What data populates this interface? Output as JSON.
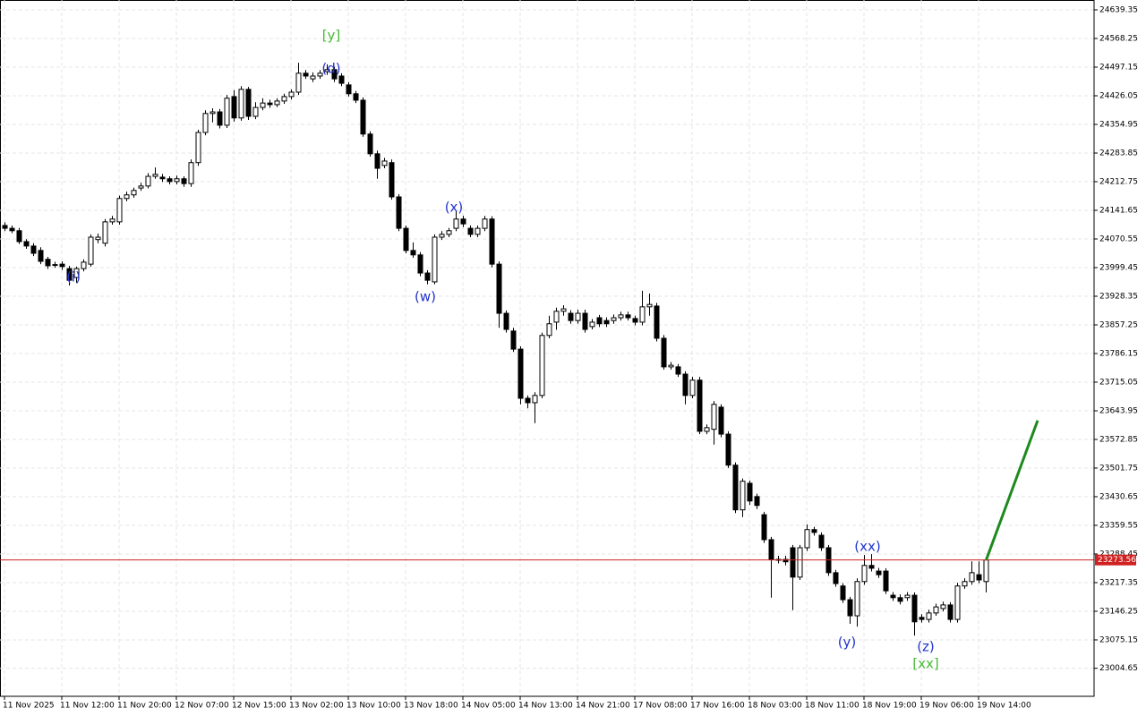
{
  "chart_data": {
    "type": "candlestick",
    "categories": [
      "11 Nov 2025",
      null,
      null,
      null,
      null,
      null,
      null,
      null,
      "11 Nov 12:00",
      null,
      null,
      null,
      null,
      null,
      null,
      null,
      "11 Nov 20:00",
      null,
      null,
      null,
      null,
      null,
      null,
      null,
      "12 Nov 07:00",
      null,
      null,
      null,
      null,
      null,
      null,
      null,
      "12 Nov 15:00",
      null,
      null,
      null,
      null,
      null,
      null,
      null,
      "13 Nov 02:00",
      null,
      null,
      null,
      null,
      null,
      null,
      null,
      "13 Nov 10:00",
      null,
      null,
      null,
      null,
      null,
      null,
      null,
      "13 Nov 18:00",
      null,
      null,
      null,
      null,
      null,
      null,
      null,
      "14 Nov 05:00",
      null,
      null,
      null,
      null,
      null,
      null,
      null,
      "14 Nov 13:00",
      null,
      null,
      null,
      null,
      null,
      null,
      null,
      "14 Nov 21:00",
      null,
      null,
      null,
      null,
      null,
      null,
      null,
      "17 Nov 08:00",
      null,
      null,
      null,
      null,
      null,
      null,
      null,
      "17 Nov 16:00",
      null,
      null,
      null,
      null,
      null,
      null,
      null,
      "18 Nov 03:00",
      null,
      null,
      null,
      null,
      null,
      null,
      null,
      "18 Nov 11:00",
      null,
      null,
      null,
      null,
      null,
      null,
      null,
      "18 Nov 19:00",
      null,
      null,
      null,
      null,
      null,
      null,
      null,
      "19 Nov 06:00",
      null,
      null,
      null,
      null,
      null,
      null,
      null,
      "19 Nov 14:00",
      null
    ],
    "open": [
      24104,
      24097,
      24091,
      24064,
      24053,
      24042,
      24020,
      24006,
      24008,
      23997,
      23975,
      23997,
      24008,
      24069,
      24060,
      24113,
      24113,
      24171,
      24180,
      24197,
      24202,
      24226,
      24224,
      24220,
      24213,
      24220,
      24208,
      24260,
      24335,
      24382,
      24386,
      24353,
      24424,
      24371,
      24442,
      24375,
      24397,
      24408,
      24404,
      24413,
      24424,
      24435,
      24482,
      24468,
      24475,
      24486,
      24491,
      24475,
      24453,
      24431,
      24415,
      24331,
      24282,
      24253,
      24260,
      24175,
      24097,
      24042,
      24031,
      23986,
      23964,
      24075,
      24082,
      24097,
      24120,
      24097,
      24082,
      24097,
      24120,
      24008,
      23886,
      23842,
      23797,
      23675,
      23664,
      23682,
      23831,
      23864,
      23891,
      23886,
      23868,
      23886,
      23853,
      23875,
      23868,
      23868,
      23875,
      23882,
      23873,
      23864,
      23902,
      23904,
      23824,
      23753,
      23753,
      23735,
      23682,
      23720,
      23593,
      23598,
      23653,
      23586,
      23509,
      23398,
      23464,
      23431,
      23386,
      23324,
      23275,
      23275,
      23304,
      23231,
      23304,
      23349,
      23335,
      23304,
      23242,
      23209,
      23175,
      23135,
      23220,
      23260,
      23246,
      23246,
      23186,
      23180,
      23180,
      23186,
      23131,
      23126,
      23142,
      23153,
      23162,
      23126,
      23209,
      23220,
      23237,
      23220
    ],
    "high": [
      24112,
      24104,
      24098,
      24070,
      24060,
      24050,
      24026,
      24014,
      24015,
      24004,
      24002,
      24020,
      24082,
      24084,
      24120,
      24128,
      24178,
      24188,
      24198,
      24210,
      24234,
      24248,
      24232,
      24226,
      24228,
      24226,
      24268,
      24342,
      24390,
      24395,
      24393,
      24428,
      24440,
      24450,
      24448,
      24410,
      24420,
      24416,
      24420,
      24431,
      24442,
      24508,
      24490,
      24484,
      24490,
      24504,
      24498,
      24482,
      24460,
      24438,
      24422,
      24338,
      24290,
      24272,
      24268,
      24182,
      24104,
      24062,
      24038,
      23993,
      24082,
      24090,
      24098,
      24140,
      24128,
      24104,
      24104,
      24128,
      24127,
      24015,
      23893,
      23850,
      23804,
      23682,
      23690,
      23838,
      23880,
      23900,
      23906,
      23894,
      23895,
      23895,
      23872,
      23882,
      23876,
      23883,
      23890,
      23890,
      23880,
      23942,
      23935,
      23912,
      23832,
      23765,
      23760,
      23742,
      23728,
      23728,
      23610,
      23668,
      23660,
      23593,
      23516,
      23476,
      23471,
      23438,
      23393,
      23331,
      23284,
      23284,
      23311,
      23311,
      23362,
      23356,
      23342,
      23311,
      23249,
      23216,
      23182,
      23228,
      23286,
      23288,
      23254,
      23253,
      23194,
      23188,
      23194,
      23193,
      23139,
      23150,
      23165,
      23170,
      23169,
      23217,
      23228,
      23270,
      23270,
      23280
    ],
    "low": [
      24090,
      24085,
      24058,
      24046,
      24028,
      24008,
      23996,
      23999,
      23994,
      23955,
      23962,
      23990,
      24002,
      24060,
      24052,
      24106,
      24106,
      24164,
      24173,
      24190,
      24196,
      24220,
      24212,
      24206,
      24206,
      24200,
      24200,
      24252,
      24328,
      24360,
      24345,
      24346,
      24362,
      24364,
      24366,
      24368,
      24390,
      24396,
      24398,
      24406,
      24417,
      24428,
      24468,
      24460,
      24468,
      24478,
      24460,
      24450,
      24424,
      24408,
      24324,
      24275,
      24220,
      24246,
      24168,
      24090,
      24035,
      24024,
      23978,
      23958,
      23958,
      24068,
      24075,
      24090,
      24100,
      24075,
      24075,
      24090,
      24000,
      23850,
      23838,
      23790,
      23660,
      23650,
      23613,
      23675,
      23824,
      23845,
      23880,
      23860,
      23860,
      23838,
      23846,
      23852,
      23852,
      23860,
      23868,
      23868,
      23856,
      23856,
      23880,
      23816,
      23746,
      23746,
      23728,
      23660,
      23675,
      23586,
      23586,
      23560,
      23578,
      23502,
      23390,
      23380,
      23410,
      23400,
      23316,
      23180,
      23265,
      23260,
      23149,
      23224,
      23296,
      23334,
      23296,
      23234,
      23207,
      23167,
      23115,
      23108,
      23212,
      23245,
      23229,
      23189,
      23172,
      23163,
      23172,
      23086,
      23118,
      23118,
      23135,
      23146,
      23118,
      23118,
      23202,
      23212,
      23216,
      23193
    ],
    "close": [
      24097,
      24091,
      24064,
      24053,
      24035,
      24015,
      24004,
      24007,
      24002,
      23968,
      23997,
      24013,
      24075,
      24075,
      24113,
      24120,
      24171,
      24180,
      24191,
      24202,
      24226,
      24231,
      24220,
      24213,
      24220,
      24208,
      24260,
      24335,
      24382,
      24386,
      24353,
      24420,
      24371,
      24442,
      24375,
      24397,
      24408,
      24404,
      24413,
      24424,
      24435,
      24482,
      24475,
      24475,
      24482,
      24491,
      24468,
      24457,
      24431,
      24415,
      24331,
      24282,
      24246,
      24264,
      24175,
      24097,
      24042,
      24031,
      23986,
      23968,
      24075,
      24082,
      24091,
      24120,
      24108,
      24082,
      24097,
      24120,
      24008,
      23886,
      23846,
      23797,
      23675,
      23664,
      23682,
      23831,
      23860,
      23891,
      23897,
      23868,
      23886,
      23846,
      23864,
      23860,
      23860,
      23875,
      23882,
      23875,
      23864,
      23902,
      23908,
      23824,
      23753,
      23757,
      23735,
      23682,
      23720,
      23593,
      23602,
      23660,
      23586,
      23509,
      23398,
      23469,
      23420,
      23409,
      23324,
      23275,
      23273,
      23269,
      23231,
      23304,
      23349,
      23342,
      23304,
      23242,
      23215,
      23175,
      23135,
      23220,
      23260,
      23253,
      23237,
      23197,
      23180,
      23171,
      23186,
      23120,
      23126,
      23142,
      23157,
      23162,
      23126,
      23209,
      23220,
      23242,
      23224,
      23273.56
    ],
    "up_color": "#ffffff",
    "down_color": "#000000",
    "ylim": [
      22935.1,
      24663.8
    ],
    "yticks": [
      24639.35,
      24568.25,
      24497.15,
      24426.05,
      24354.95,
      24283.85,
      24212.75,
      24141.65,
      24070.55,
      23999.45,
      23928.35,
      23857.25,
      23786.15,
      23715.05,
      23643.95,
      23572.85,
      23501.75,
      23430.65,
      23359.55,
      23288.45,
      23217.35,
      23146.25,
      23075.15,
      23004.65
    ],
    "grid": true,
    "current_price": 23273.56,
    "current_price_color": "#d02020",
    "projection": {
      "color": "#1e8a1e",
      "values": [
        23273.56,
        23620
      ]
    },
    "annotations": [
      {
        "text": "(i)",
        "color": "#2233cc"
      },
      {
        "text": "[y]",
        "color": "#44bb33"
      },
      {
        "text": "(d)",
        "color": "#2233cc"
      },
      {
        "text": "(x)",
        "color": "#2233cc"
      },
      {
        "text": "(w)",
        "color": "#2233cc"
      },
      {
        "text": "(xx)",
        "color": "#2233cc"
      },
      {
        "text": "(y)",
        "color": "#2233cc"
      },
      {
        "text": "(z)",
        "color": "#2233cc"
      },
      {
        "text": "[xx]",
        "color": "#44bb33"
      }
    ]
  }
}
